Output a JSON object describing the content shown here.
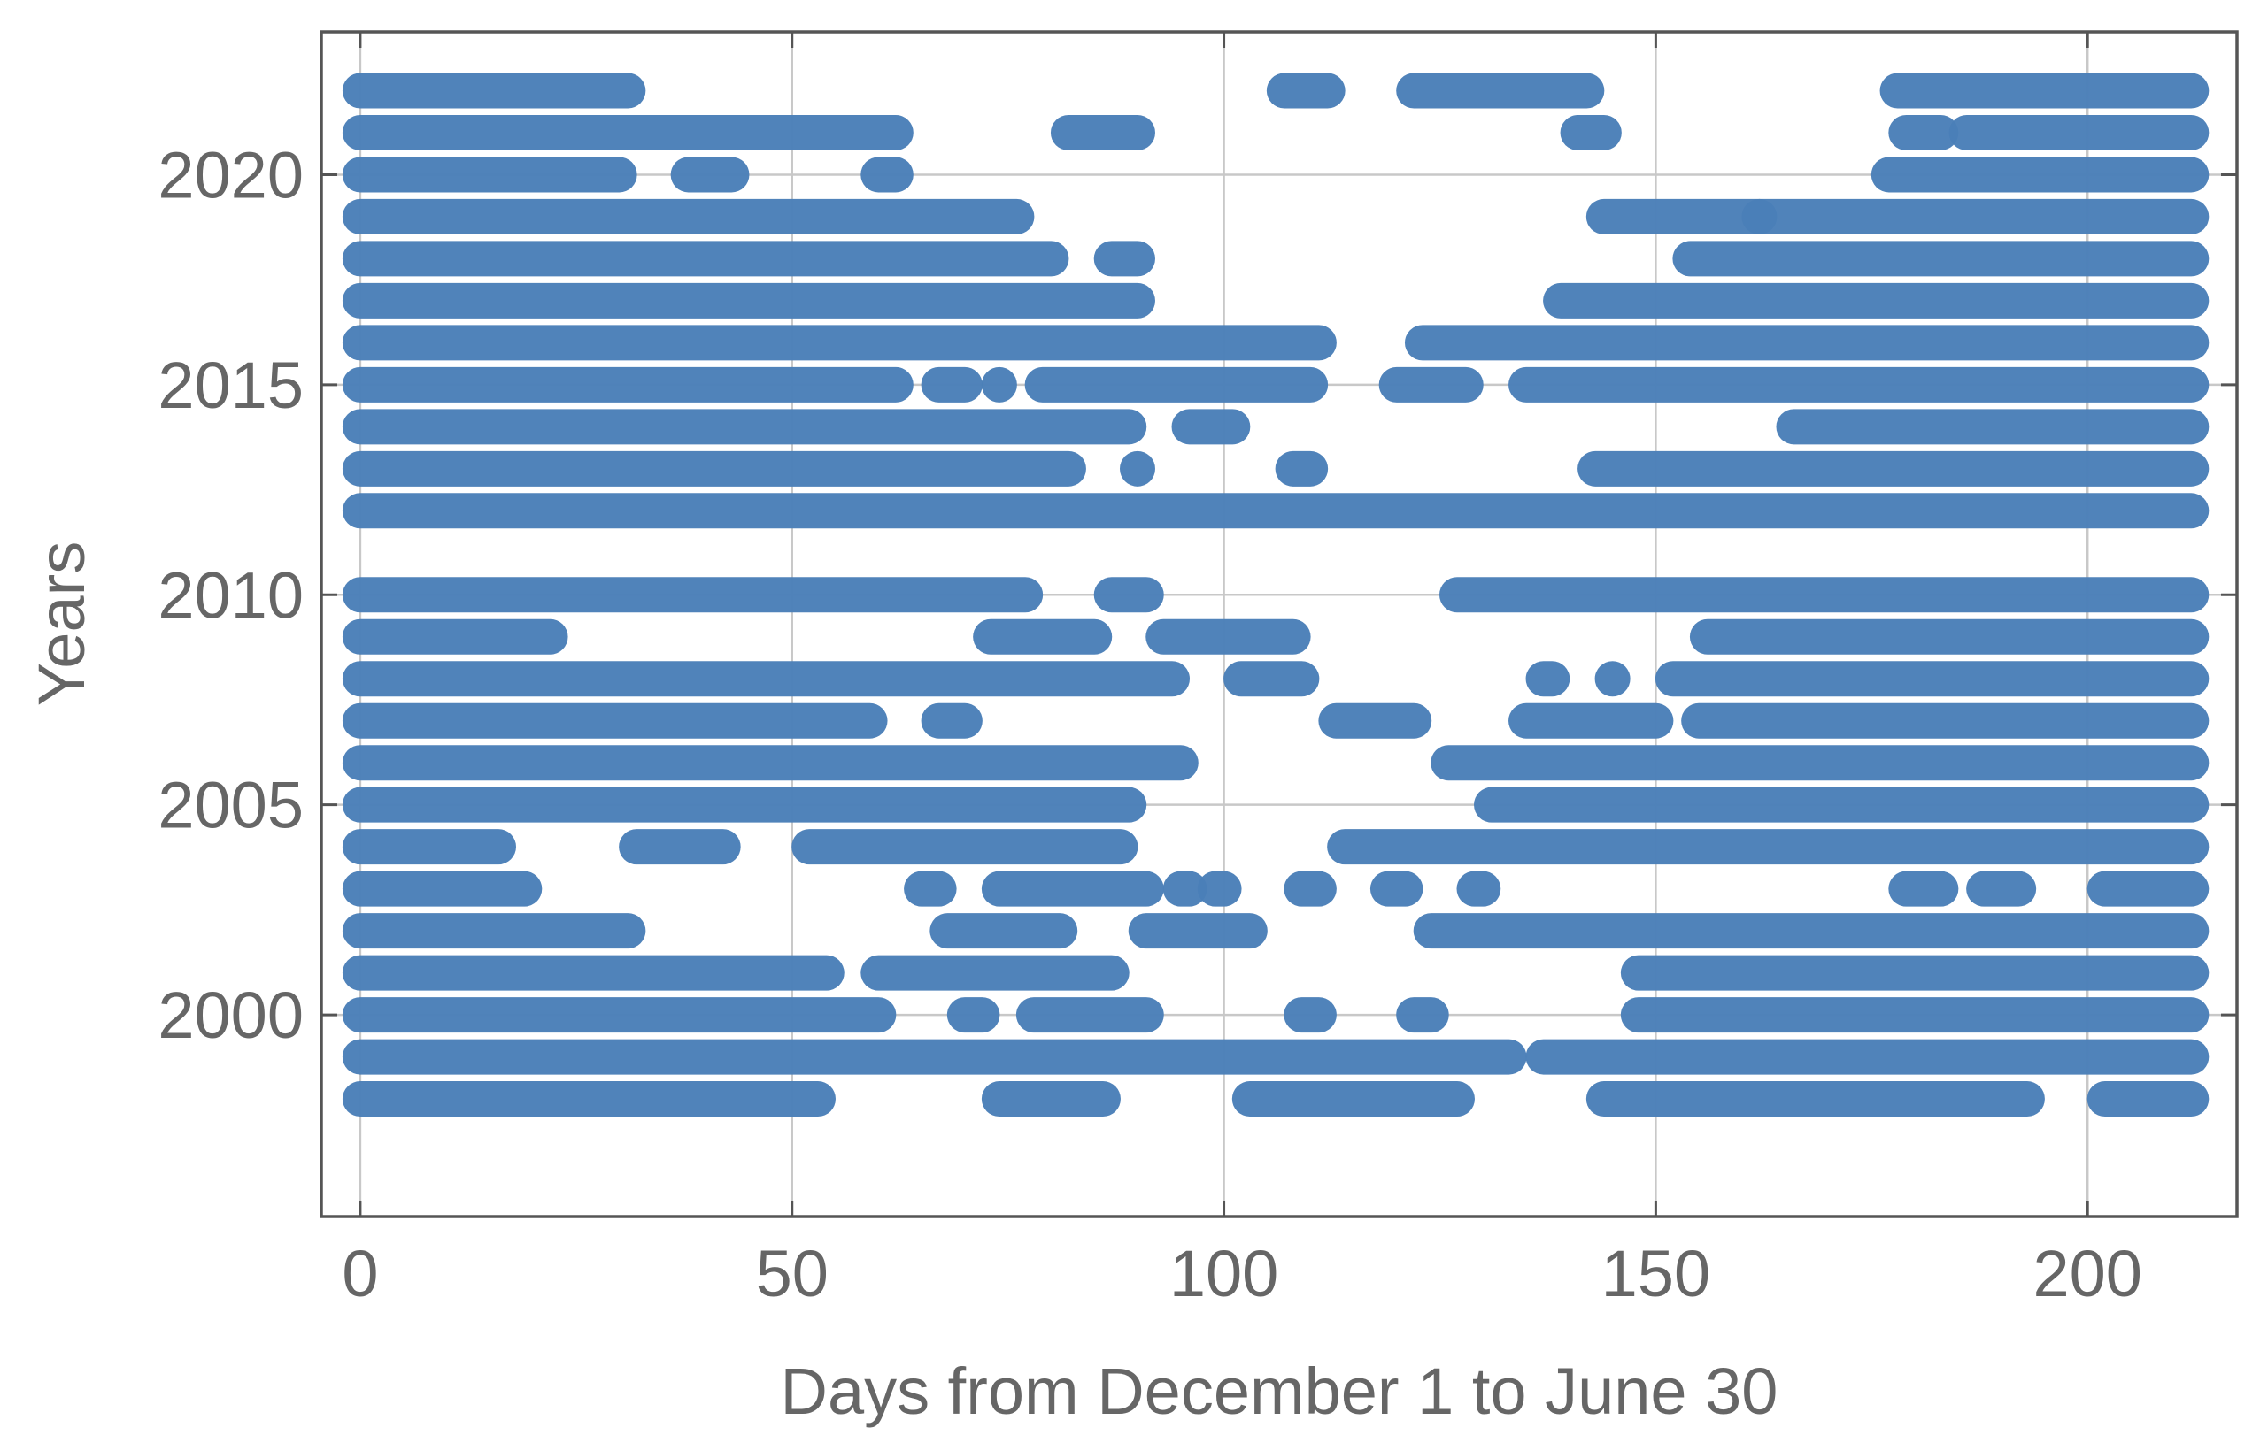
{
  "chart_data": {
    "type": "scatter",
    "xlabel": "Days from December 1 to June 30",
    "ylabel": "Years",
    "color": "#4a7fb8",
    "grid": true,
    "xlim": [
      -4.5,
      217.3
    ],
    "ylim": [
      1995.2,
      2023.4
    ],
    "xticks": [
      0,
      50,
      100,
      150,
      200
    ],
    "yticks": [
      2000,
      2005,
      2010,
      2015,
      2020
    ],
    "rows": [
      {
        "year": 2022,
        "runs": [
          [
            0,
            31
          ],
          [
            107,
            112
          ],
          [
            122,
            142
          ],
          [
            178,
            212
          ]
        ]
      },
      {
        "year": 2021,
        "runs": [
          [
            0,
            62
          ],
          [
            82,
            90
          ],
          [
            141,
            144
          ],
          [
            179,
            183
          ],
          [
            186,
            212
          ]
        ]
      },
      {
        "year": 2020,
        "runs": [
          [
            0,
            30
          ],
          [
            38,
            43
          ],
          [
            60,
            62
          ],
          [
            177,
            212
          ]
        ]
      },
      {
        "year": 2019,
        "runs": [
          [
            0,
            76
          ],
          [
            144,
            162
          ],
          [
            162,
            212
          ]
        ]
      },
      {
        "year": 2018,
        "runs": [
          [
            0,
            80
          ],
          [
            87,
            90
          ],
          [
            154,
            212
          ]
        ]
      },
      {
        "year": 2017,
        "runs": [
          [
            0,
            90
          ],
          [
            139,
            212
          ]
        ]
      },
      {
        "year": 2016,
        "runs": [
          [
            0,
            111
          ],
          [
            123,
            212
          ]
        ]
      },
      {
        "year": 2015,
        "runs": [
          [
            0,
            62
          ],
          [
            67,
            70
          ],
          [
            74,
            74
          ],
          [
            79,
            110
          ],
          [
            120,
            128
          ],
          [
            135,
            212
          ]
        ]
      },
      {
        "year": 2014,
        "runs": [
          [
            0,
            89
          ],
          [
            96,
            101
          ],
          [
            166,
            212
          ]
        ]
      },
      {
        "year": 2013,
        "runs": [
          [
            0,
            82
          ],
          [
            90,
            90
          ],
          [
            108,
            110
          ],
          [
            143,
            212
          ]
        ]
      },
      {
        "year": 2012,
        "runs": [
          [
            0,
            212
          ]
        ]
      },
      {
        "year": 2010,
        "runs": [
          [
            0,
            77
          ],
          [
            87,
            91
          ],
          [
            127,
            212
          ]
        ]
      },
      {
        "year": 2009,
        "runs": [
          [
            0,
            22
          ],
          [
            73,
            85
          ],
          [
            93,
            108
          ],
          [
            156,
            212
          ]
        ]
      },
      {
        "year": 2008,
        "runs": [
          [
            0,
            94
          ],
          [
            102,
            109
          ],
          [
            137,
            138
          ],
          [
            145,
            145
          ],
          [
            152,
            212
          ]
        ]
      },
      {
        "year": 2007,
        "runs": [
          [
            0,
            59
          ],
          [
            67,
            70
          ],
          [
            113,
            122
          ],
          [
            135,
            150
          ],
          [
            155,
            212
          ]
        ]
      },
      {
        "year": 2006,
        "runs": [
          [
            0,
            95
          ],
          [
            126,
            212
          ]
        ]
      },
      {
        "year": 2005,
        "runs": [
          [
            0,
            89
          ],
          [
            131,
            212
          ]
        ]
      },
      {
        "year": 2004,
        "runs": [
          [
            0,
            16
          ],
          [
            32,
            42
          ],
          [
            52,
            88
          ],
          [
            114,
            212
          ]
        ]
      },
      {
        "year": 2003,
        "runs": [
          [
            0,
            19
          ],
          [
            65,
            67
          ],
          [
            74,
            91
          ],
          [
            95,
            96
          ],
          [
            99,
            100
          ],
          [
            109,
            111
          ],
          [
            119,
            121
          ],
          [
            129,
            130
          ],
          [
            179,
            183
          ],
          [
            188,
            192
          ],
          [
            202,
            212
          ]
        ]
      },
      {
        "year": 2002,
        "runs": [
          [
            0,
            31
          ],
          [
            68,
            81
          ],
          [
            91,
            103
          ],
          [
            124,
            212
          ]
        ]
      },
      {
        "year": 2001,
        "runs": [
          [
            0,
            54
          ],
          [
            60,
            87
          ],
          [
            148,
            212
          ]
        ]
      },
      {
        "year": 2000,
        "runs": [
          [
            0,
            60
          ],
          [
            70,
            72
          ],
          [
            78,
            91
          ],
          [
            109,
            111
          ],
          [
            122,
            124
          ],
          [
            148,
            212
          ]
        ]
      },
      {
        "year": 1999,
        "runs": [
          [
            0,
            133
          ],
          [
            137,
            212
          ]
        ]
      },
      {
        "year": 1998,
        "runs": [
          [
            0,
            53
          ],
          [
            74,
            86
          ],
          [
            103,
            127
          ],
          [
            144,
            193
          ],
          [
            202,
            212
          ]
        ]
      }
    ]
  }
}
